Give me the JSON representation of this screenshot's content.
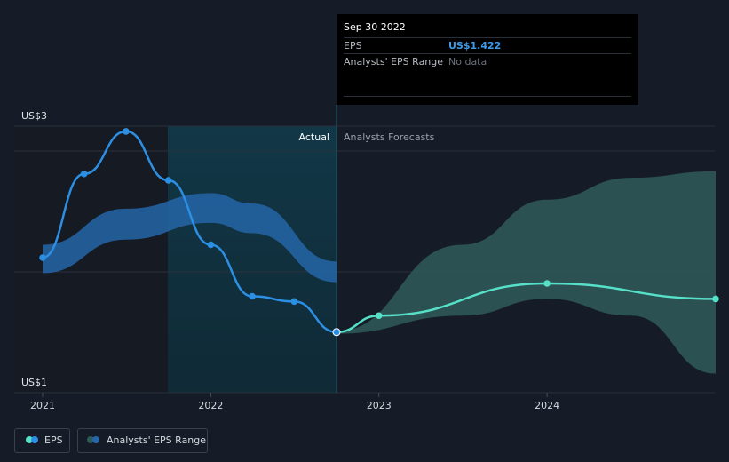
{
  "tooltip": {
    "date": "Sep 30 2022",
    "eps_label": "EPS",
    "eps_value": "US$1.422",
    "range_label": "Analysts' EPS Range",
    "range_value": "No data"
  },
  "legend": {
    "eps": "EPS",
    "range": "Analysts' EPS Range"
  },
  "colors": {
    "actual_line": "#2d8fe3",
    "forecast_line": "#56e0c8",
    "actual_band": "#2466a8",
    "forecast_band": "#2f5a5a",
    "value_text": "#3d9be9",
    "nodata_text": "#6b717c"
  },
  "chart_data": {
    "type": "line",
    "y_axis_labels": [
      "US$3",
      "US$1"
    ],
    "ylim": [
      1,
      3
    ],
    "x_tick_labels": [
      "2021",
      "2022",
      "2023",
      "2024"
    ],
    "section_labels": {
      "actual": "Actual",
      "forecast": "Analysts Forecasts"
    },
    "series": [
      {
        "name": "EPS",
        "x": [
          "2020-12-31",
          "2021-03-31",
          "2021-06-30",
          "2021-09-30",
          "2021-12-31",
          "2022-03-31",
          "2022-06-30",
          "2022-09-30"
        ],
        "y": [
          2.0,
          2.65,
          2.98,
          2.6,
          2.1,
          1.7,
          1.66,
          1.422
        ]
      },
      {
        "name": "EPS Forecast",
        "x": [
          "2022-09-30",
          "2022-12-31",
          "2023-12-31",
          "2024-12-31"
        ],
        "y": [
          1.422,
          1.55,
          1.8,
          1.68
        ]
      }
    ],
    "bands": [
      {
        "name": "Analysts' EPS Range",
        "x": [
          "2020-12-31",
          "2021-06-30",
          "2021-12-31",
          "2022-03-31",
          "2022-09-30"
        ],
        "low": [
          1.88,
          2.14,
          2.27,
          2.19,
          1.81
        ],
        "high": [
          2.1,
          2.38,
          2.5,
          2.42,
          1.97
        ]
      },
      {
        "name": "Analysts' EPS Range Forecast",
        "x": [
          "2022-09-30",
          "2023-06-30",
          "2023-12-31",
          "2024-06-30",
          "2024-12-31"
        ],
        "low": [
          1.41,
          1.55,
          1.68,
          1.55,
          1.1
        ],
        "high": [
          1.43,
          2.1,
          2.45,
          2.62,
          2.67
        ]
      }
    ],
    "highlight_date": "2022-09-30"
  }
}
